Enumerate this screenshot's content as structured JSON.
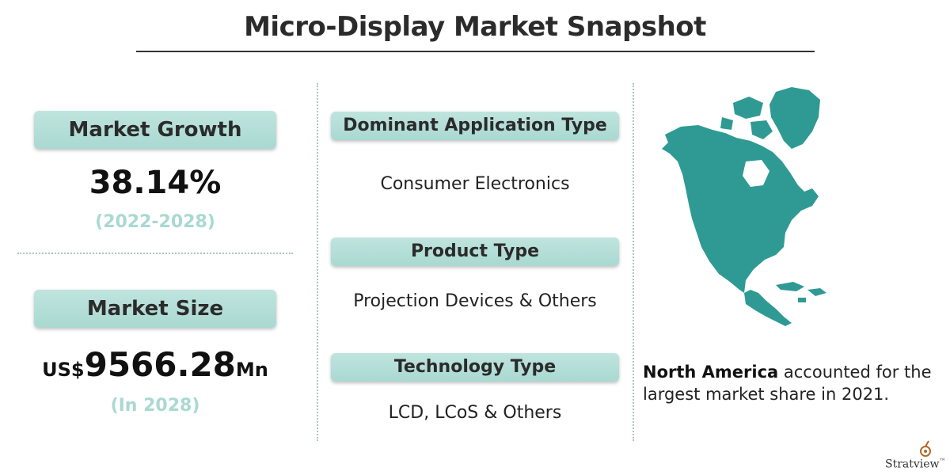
{
  "title": "Micro-Display Market Snapshot",
  "market_growth": {
    "label": "Market Growth",
    "value": "38.14%",
    "period": "(2022-2028)"
  },
  "market_size": {
    "label": "Market Size",
    "prefix": "US$",
    "value": "9566.28",
    "unit": "Mn",
    "period": "(In 2028)"
  },
  "sections": [
    {
      "label": "Dominant Application Type",
      "value": "Consumer Electronics"
    },
    {
      "label": "Product Type",
      "value": "Projection Devices & Others"
    },
    {
      "label": "Technology Type",
      "value": "LCD, LCoS & Others"
    }
  ],
  "region_note": {
    "bold": "North America",
    "text": " accounted for the largest market share in 2021."
  },
  "logo": {
    "text": "Stratview",
    "tm": "™"
  },
  "colors": {
    "accent": "#a9d9d1",
    "map": "#2f9a94"
  }
}
